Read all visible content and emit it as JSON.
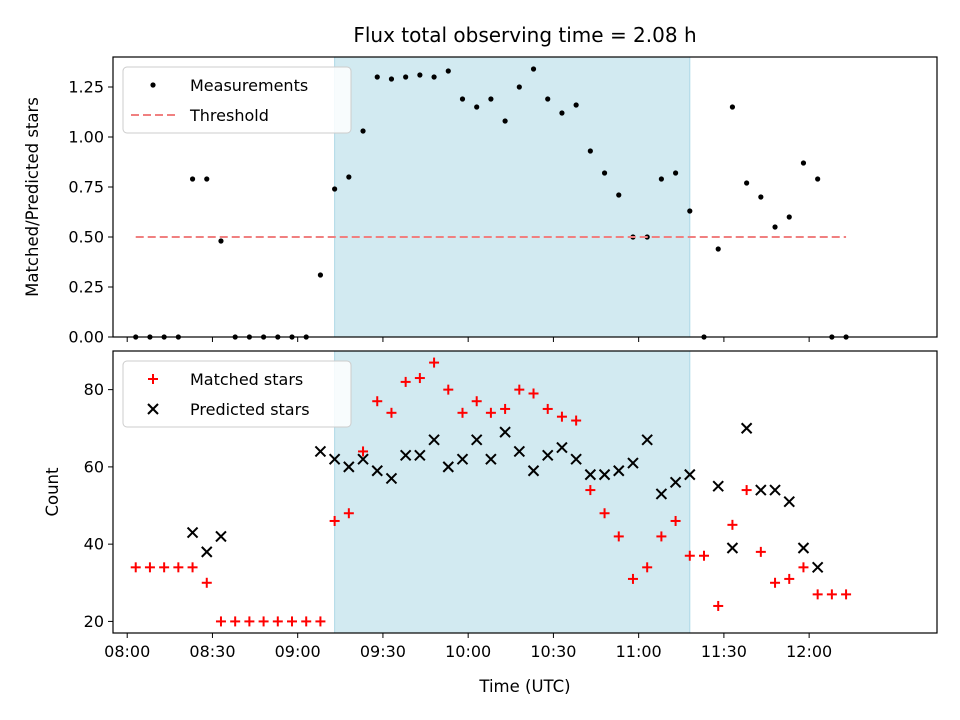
{
  "chart_data": [
    {
      "type": "scatter",
      "title": "Flux total observing time = 2.08 h",
      "xlabel": "",
      "ylabel": "Matched/Predicted stars",
      "ylim": [
        0,
        1.4
      ],
      "xlim": [
        "07:55",
        "12:45"
      ],
      "y_ticks": [
        "0.00",
        "0.25",
        "0.50",
        "0.75",
        "1.00",
        "1.25"
      ],
      "shaded_interval": [
        "09:13",
        "11:18"
      ],
      "shade_color": "#add8e6",
      "legend_position": "top-left",
      "series": [
        {
          "name": "Measurements",
          "marker": "dot",
          "color": "#000000",
          "points": [
            [
              "08:03",
              0.0
            ],
            [
              "08:08",
              0.0
            ],
            [
              "08:13",
              0.0
            ],
            [
              "08:18",
              0.0
            ],
            [
              "08:23",
              0.79
            ],
            [
              "08:28",
              0.79
            ],
            [
              "08:33",
              0.48
            ],
            [
              "08:38",
              0.0
            ],
            [
              "08:43",
              0.0
            ],
            [
              "08:48",
              0.0
            ],
            [
              "08:53",
              0.0
            ],
            [
              "08:58",
              0.0
            ],
            [
              "09:03",
              0.0
            ],
            [
              "09:08",
              0.31
            ],
            [
              "09:13",
              0.74
            ],
            [
              "09:18",
              0.8
            ],
            [
              "09:23",
              1.03
            ],
            [
              "09:28",
              1.3
            ],
            [
              "09:33",
              1.29
            ],
            [
              "09:38",
              1.3
            ],
            [
              "09:43",
              1.31
            ],
            [
              "09:48",
              1.3
            ],
            [
              "09:53",
              1.33
            ],
            [
              "09:58",
              1.19
            ],
            [
              "10:03",
              1.15
            ],
            [
              "10:08",
              1.19
            ],
            [
              "10:13",
              1.08
            ],
            [
              "10:18",
              1.25
            ],
            [
              "10:23",
              1.34
            ],
            [
              "10:28",
              1.19
            ],
            [
              "10:33",
              1.12
            ],
            [
              "10:38",
              1.16
            ],
            [
              "10:43",
              0.93
            ],
            [
              "10:48",
              0.82
            ],
            [
              "10:53",
              0.71
            ],
            [
              "10:58",
              0.5
            ],
            [
              "11:03",
              0.5
            ],
            [
              "11:08",
              0.79
            ],
            [
              "11:13",
              0.82
            ],
            [
              "11:18",
              0.63
            ],
            [
              "11:23",
              0.0
            ],
            [
              "11:28",
              0.44
            ],
            [
              "11:33",
              1.15
            ],
            [
              "11:38",
              0.77
            ],
            [
              "11:43",
              0.7
            ],
            [
              "11:48",
              0.55
            ],
            [
              "11:53",
              0.6
            ],
            [
              "11:58",
              0.87
            ],
            [
              "12:03",
              0.79
            ],
            [
              "12:08",
              0.0
            ],
            [
              "12:13",
              0.0
            ]
          ]
        },
        {
          "name": "Threshold",
          "marker": "dashed-line",
          "color": "#f08080",
          "points": [
            [
              "08:03",
              0.5
            ],
            [
              "12:13",
              0.5
            ]
          ]
        }
      ]
    },
    {
      "type": "scatter",
      "title": "",
      "xlabel": "Time (UTC)",
      "ylabel": "Count",
      "ylim": [
        17,
        90
      ],
      "xlim": [
        "07:55",
        "12:45"
      ],
      "y_ticks": [
        "20",
        "40",
        "60",
        "80"
      ],
      "x_ticks": [
        "08:00",
        "08:30",
        "09:00",
        "09:30",
        "10:00",
        "10:30",
        "11:00",
        "11:30",
        "12:00"
      ],
      "shaded_interval": [
        "09:13",
        "11:18"
      ],
      "shade_color": "#add8e6",
      "legend_position": "top-left",
      "series": [
        {
          "name": "Matched stars",
          "marker": "plus",
          "color": "#ff0000",
          "points": [
            [
              "08:03",
              34
            ],
            [
              "08:08",
              34
            ],
            [
              "08:13",
              34
            ],
            [
              "08:18",
              34
            ],
            [
              "08:23",
              34
            ],
            [
              "08:28",
              30
            ],
            [
              "08:33",
              20
            ],
            [
              "08:38",
              20
            ],
            [
              "08:43",
              20
            ],
            [
              "08:48",
              20
            ],
            [
              "08:53",
              20
            ],
            [
              "08:58",
              20
            ],
            [
              "09:03",
              20
            ],
            [
              "09:08",
              20
            ],
            [
              "09:13",
              46
            ],
            [
              "09:18",
              48
            ],
            [
              "09:23",
              64
            ],
            [
              "09:28",
              77
            ],
            [
              "09:33",
              74
            ],
            [
              "09:38",
              82
            ],
            [
              "09:43",
              83
            ],
            [
              "09:48",
              87
            ],
            [
              "09:53",
              80
            ],
            [
              "09:58",
              74
            ],
            [
              "10:03",
              77
            ],
            [
              "10:08",
              74
            ],
            [
              "10:13",
              75
            ],
            [
              "10:18",
              80
            ],
            [
              "10:23",
              79
            ],
            [
              "10:28",
              75
            ],
            [
              "10:33",
              73
            ],
            [
              "10:38",
              72
            ],
            [
              "10:43",
              54
            ],
            [
              "10:48",
              48
            ],
            [
              "10:53",
              42
            ],
            [
              "10:58",
              31
            ],
            [
              "11:03",
              34
            ],
            [
              "11:08",
              42
            ],
            [
              "11:13",
              46
            ],
            [
              "11:18",
              37
            ],
            [
              "11:23",
              37
            ],
            [
              "11:28",
              24
            ],
            [
              "11:33",
              45
            ],
            [
              "11:38",
              54
            ],
            [
              "11:43",
              38
            ],
            [
              "11:48",
              30
            ],
            [
              "11:53",
              31
            ],
            [
              "11:58",
              34
            ],
            [
              "12:03",
              27
            ],
            [
              "12:08",
              27
            ],
            [
              "12:13",
              27
            ]
          ]
        },
        {
          "name": "Predicted stars",
          "marker": "x",
          "color": "#000000",
          "points": [
            [
              "08:23",
              43
            ],
            [
              "08:28",
              38
            ],
            [
              "08:33",
              42
            ],
            [
              "09:08",
              64
            ],
            [
              "09:13",
              62
            ],
            [
              "09:18",
              60
            ],
            [
              "09:23",
              62
            ],
            [
              "09:28",
              59
            ],
            [
              "09:33",
              57
            ],
            [
              "09:38",
              63
            ],
            [
              "09:43",
              63
            ],
            [
              "09:48",
              67
            ],
            [
              "09:53",
              60
            ],
            [
              "09:58",
              62
            ],
            [
              "10:03",
              67
            ],
            [
              "10:08",
              62
            ],
            [
              "10:13",
              69
            ],
            [
              "10:18",
              64
            ],
            [
              "10:23",
              59
            ],
            [
              "10:28",
              63
            ],
            [
              "10:33",
              65
            ],
            [
              "10:38",
              62
            ],
            [
              "10:43",
              58
            ],
            [
              "10:48",
              58
            ],
            [
              "10:53",
              59
            ],
            [
              "10:58",
              61
            ],
            [
              "11:03",
              67
            ],
            [
              "11:08",
              53
            ],
            [
              "11:13",
              56
            ],
            [
              "11:18",
              58
            ],
            [
              "11:28",
              55
            ],
            [
              "11:33",
              39
            ],
            [
              "11:38",
              70
            ],
            [
              "11:43",
              54
            ],
            [
              "11:48",
              54
            ],
            [
              "11:53",
              51
            ],
            [
              "11:58",
              39
            ],
            [
              "12:03",
              34
            ]
          ]
        }
      ]
    }
  ]
}
